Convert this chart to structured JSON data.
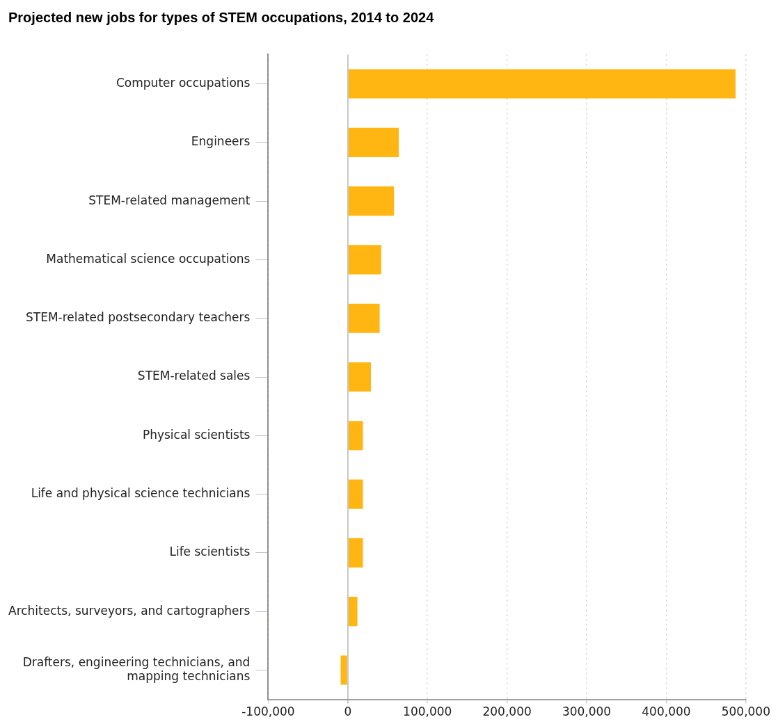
{
  "chart_data": {
    "type": "bar",
    "orientation": "horizontal",
    "title": "Projected new jobs for types of STEM occupations, 2014 to 2024",
    "categories": [
      "Computer occupations",
      "Engineers",
      "STEM-related management",
      "Mathematical science occupations",
      "STEM-related postsecondary teachers",
      "STEM-related sales",
      "Physical scientists",
      "Life and physical science technicians",
      "Life scientists",
      "Architects, surveyors, and cartographers",
      "Drafters, engineering technicians, and mapping technicians"
    ],
    "values": [
      487000,
      64000,
      58000,
      42000,
      40000,
      29000,
      19000,
      19000,
      19000,
      12000,
      -9000
    ],
    "color": "#ffb612",
    "xlim": [
      -100000,
      500000
    ],
    "xticks": [
      {
        "value": -100000,
        "label": "-100,000"
      },
      0,
      {
        "value": 100000,
        "label": "100,000"
      },
      {
        "value": 200000,
        "label": "200,000"
      },
      {
        "value": 300000,
        "label": "300,000"
      },
      {
        "value": 400000,
        "label": "400,000"
      },
      {
        "value": 500000,
        "label": "500,000"
      }
    ],
    "grid": "x",
    "legend": false
  }
}
